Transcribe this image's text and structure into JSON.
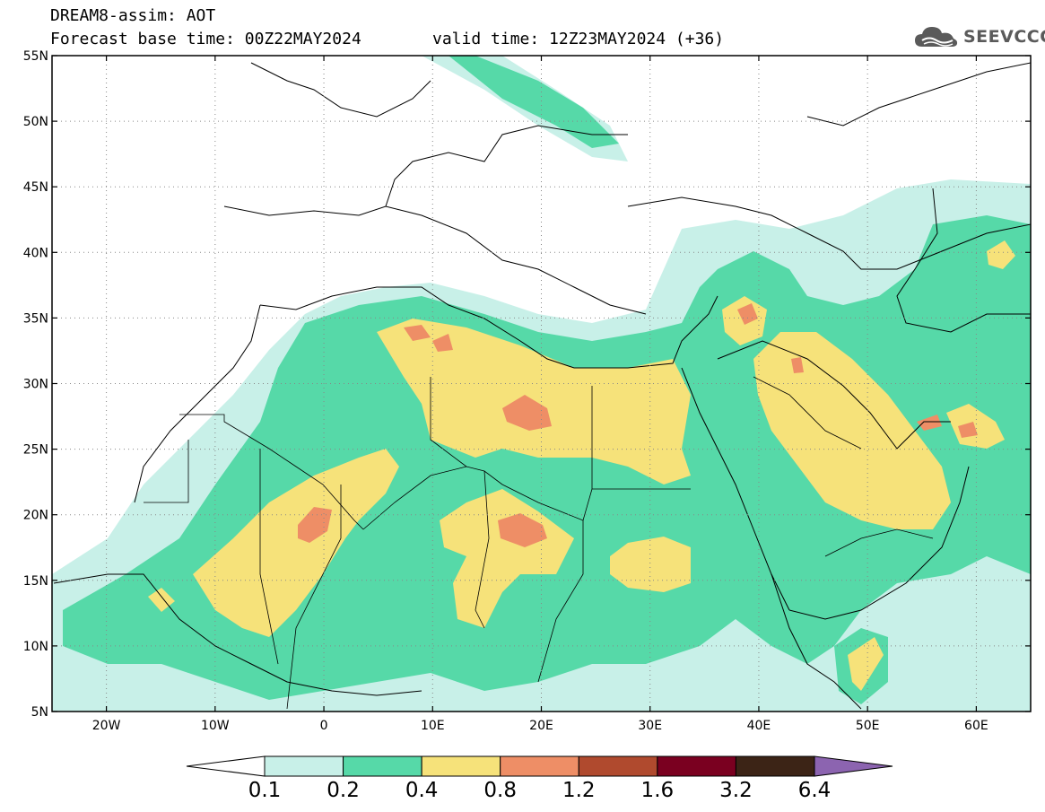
{
  "header": {
    "model": "DREAM8-assim: AOT",
    "base_time": "Forecast base time: 00Z22MAY2024",
    "valid_time": "valid time: 12Z23MAY2024 (+36)",
    "logo_text": "SEEVCCC"
  },
  "axes": {
    "lat_labels": [
      "55N",
      "50N",
      "45N",
      "40N",
      "35N",
      "30N",
      "25N",
      "20N",
      "15N",
      "10N",
      "5N"
    ],
    "lon_labels": [
      "20W",
      "10W",
      "0",
      "10E",
      "20E",
      "30E",
      "40E",
      "50E",
      "60E"
    ]
  },
  "colorbar": {
    "labels": [
      "0.1",
      "0.2",
      "0.4",
      "0.8",
      "1.2",
      "1.6",
      "3.2",
      "6.4"
    ],
    "colors": [
      "#ffffff",
      "#c8f0e8",
      "#56d9a8",
      "#f6e27a",
      "#ee8e66",
      "#b04a2e",
      "#7a0020",
      "#3c2416",
      "#8c64b0"
    ]
  }
}
